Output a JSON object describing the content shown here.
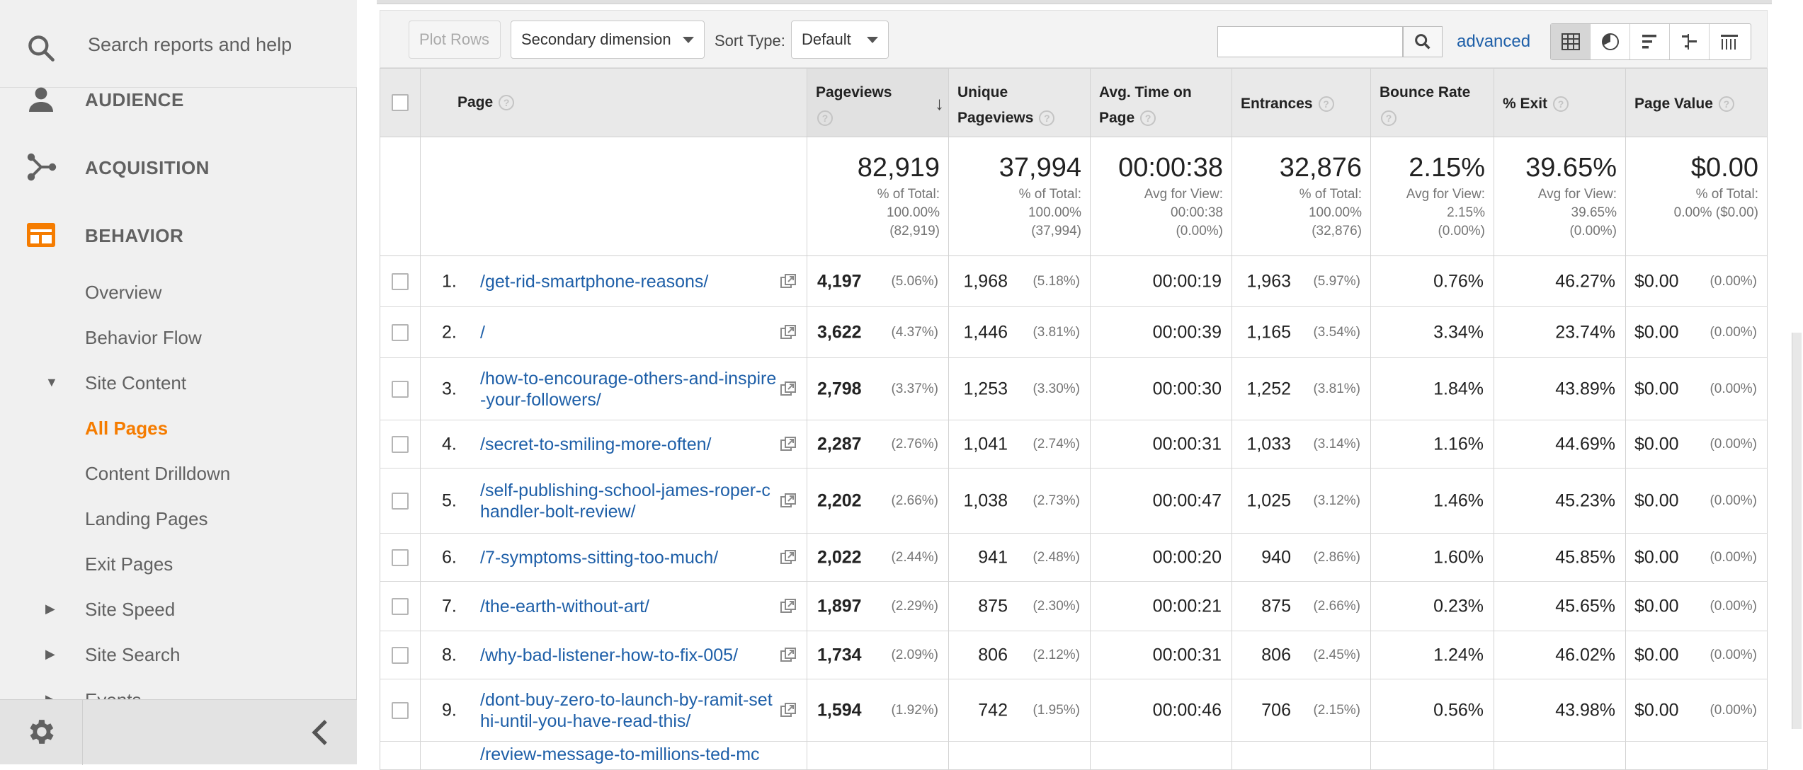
{
  "sidebar": {
    "search_placeholder": "Search reports and help",
    "sections": [
      {
        "label": "AUDIENCE",
        "icon": "person-icon"
      },
      {
        "label": "ACQUISITION",
        "icon": "acquisition-icon"
      },
      {
        "label": "BEHAVIOR",
        "icon": "behavior-icon"
      }
    ],
    "behavior_items": [
      "Overview",
      "Behavior Flow"
    ],
    "site_content_label": "Site Content",
    "site_content_items": [
      "All Pages",
      "Content Drilldown",
      "Landing Pages",
      "Exit Pages"
    ],
    "collapsed_items": [
      "Site Speed",
      "Site Search",
      "Events"
    ],
    "active_color": "#f57c00"
  },
  "toolbar": {
    "plot_rows": "Plot Rows",
    "secondary_dimension": "Secondary dimension",
    "sort_type_label": "Sort Type:",
    "sort_type_value": "Default",
    "advanced": "advanced"
  },
  "table": {
    "headers": {
      "page": "Page",
      "pageviews": "Pageviews",
      "unique_pageviews": "Unique Pageviews",
      "avg_time": "Avg. Time on Page",
      "entrances": "Entrances",
      "bounce_rate": "Bounce Rate",
      "exit": "% Exit",
      "page_value": "Page Value"
    },
    "totals": {
      "pageviews": {
        "big": "82,919",
        "l1": "% of Total:",
        "l2": "100.00%",
        "l3": "(82,919)"
      },
      "unique": {
        "big": "37,994",
        "l1": "% of Total:",
        "l2": "100.00%",
        "l3": "(37,994)"
      },
      "avg_time": {
        "big": "00:00:38",
        "l1": "Avg for View:",
        "l2": "00:00:38",
        "l3": "(0.00%)"
      },
      "entrances": {
        "big": "32,876",
        "l1": "% of Total:",
        "l2": "100.00%",
        "l3": "(32,876)"
      },
      "bounce": {
        "big": "2.15%",
        "l1": "Avg for View:",
        "l2": "2.15%",
        "l3": "(0.00%)"
      },
      "exit": {
        "big": "39.65%",
        "l1": "Avg for View:",
        "l2": "39.65%",
        "l3": "(0.00%)"
      },
      "value": {
        "big": "$0.00",
        "l1": "% of Total:",
        "l2": "0.00% ($0.00)"
      }
    },
    "rows": [
      {
        "rank": "1.",
        "page": "/get-rid-smartphone-reasons/",
        "pv": "4,197",
        "pvp": "(5.06%)",
        "upv": "1,968",
        "upvp": "(5.18%)",
        "time": "00:00:19",
        "ent": "1,963",
        "entp": "(5.97%)",
        "bounce": "0.76%",
        "exit": "46.27%",
        "val": "$0.00",
        "valp": "(0.00%)"
      },
      {
        "rank": "2.",
        "page": "/",
        "pv": "3,622",
        "pvp": "(4.37%)",
        "upv": "1,446",
        "upvp": "(3.81%)",
        "time": "00:00:39",
        "ent": "1,165",
        "entp": "(3.54%)",
        "bounce": "3.34%",
        "exit": "23.74%",
        "val": "$0.00",
        "valp": "(0.00%)"
      },
      {
        "rank": "3.",
        "page": "/how-to-encourage-others-and-inspire-your-followers/",
        "pv": "2,798",
        "pvp": "(3.37%)",
        "upv": "1,253",
        "upvp": "(3.30%)",
        "time": "00:00:30",
        "ent": "1,252",
        "entp": "(3.81%)",
        "bounce": "1.84%",
        "exit": "43.89%",
        "val": "$0.00",
        "valp": "(0.00%)"
      },
      {
        "rank": "4.",
        "page": "/secret-to-smiling-more-often/",
        "pv": "2,287",
        "pvp": "(2.76%)",
        "upv": "1,041",
        "upvp": "(2.74%)",
        "time": "00:00:31",
        "ent": "1,033",
        "entp": "(3.14%)",
        "bounce": "1.16%",
        "exit": "44.69%",
        "val": "$0.00",
        "valp": "(0.00%)"
      },
      {
        "rank": "5.",
        "page": "/self-publishing-school-james-roper-chandler-bolt-review/",
        "pv": "2,202",
        "pvp": "(2.66%)",
        "upv": "1,038",
        "upvp": "(2.73%)",
        "time": "00:00:47",
        "ent": "1,025",
        "entp": "(3.12%)",
        "bounce": "1.46%",
        "exit": "45.23%",
        "val": "$0.00",
        "valp": "(0.00%)"
      },
      {
        "rank": "6.",
        "page": "/7-symptoms-sitting-too-much/",
        "pv": "2,022",
        "pvp": "(2.44%)",
        "upv": "941",
        "upvp": "(2.48%)",
        "time": "00:00:20",
        "ent": "940",
        "entp": "(2.86%)",
        "bounce": "1.60%",
        "exit": "45.85%",
        "val": "$0.00",
        "valp": "(0.00%)"
      },
      {
        "rank": "7.",
        "page": "/the-earth-without-art/",
        "pv": "1,897",
        "pvp": "(2.29%)",
        "upv": "875",
        "upvp": "(2.30%)",
        "time": "00:00:21",
        "ent": "875",
        "entp": "(2.66%)",
        "bounce": "0.23%",
        "exit": "45.65%",
        "val": "$0.00",
        "valp": "(0.00%)"
      },
      {
        "rank": "8.",
        "page": "/why-bad-listener-how-to-fix-005/",
        "pv": "1,734",
        "pvp": "(2.09%)",
        "upv": "806",
        "upvp": "(2.12%)",
        "time": "00:00:31",
        "ent": "806",
        "entp": "(2.45%)",
        "bounce": "1.24%",
        "exit": "46.02%",
        "val": "$0.00",
        "valp": "(0.00%)"
      },
      {
        "rank": "9.",
        "page": "/dont-buy-zero-to-launch-by-ramit-sethi-until-you-have-read-this/",
        "pv": "1,594",
        "pvp": "(1.92%)",
        "upv": "742",
        "upvp": "(1.95%)",
        "time": "00:00:46",
        "ent": "706",
        "entp": "(2.15%)",
        "bounce": "0.56%",
        "exit": "43.98%",
        "val": "$0.00",
        "valp": "(0.00%)"
      }
    ],
    "partial_row_page": "/review-message-to-millions-ted-mc"
  }
}
